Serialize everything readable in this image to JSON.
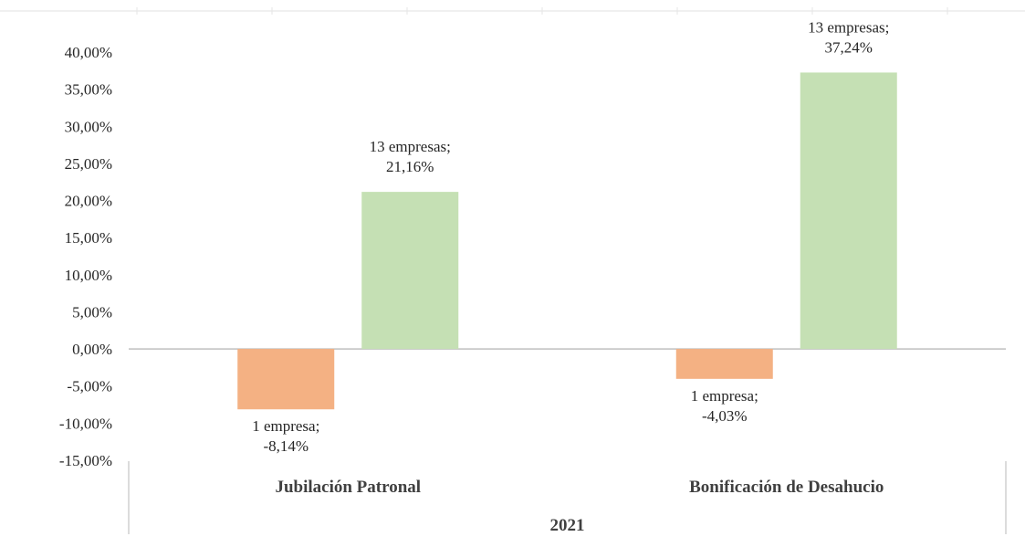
{
  "chart_data": {
    "type": "bar",
    "categories": [
      "Jubilación Patronal",
      "Bonificación de Desahucio"
    ],
    "group_label": "2021",
    "series": [
      {
        "color": "#f4b183",
        "values": [
          -8.14,
          -4.03
        ]
      },
      {
        "color": "#c5e0b4",
        "values": [
          21.16,
          37.24
        ]
      }
    ],
    "data_labels": [
      [
        "1 empresa;",
        "-8,14%"
      ],
      [
        "13 empresas;",
        "21,16%"
      ],
      [
        "1 empresa;",
        "-4,03%"
      ],
      [
        "13 empresas;",
        "37,24%"
      ]
    ],
    "y_ticks": [
      40,
      35,
      30,
      25,
      20,
      15,
      10,
      5,
      0,
      -5,
      -10,
      -15
    ],
    "y_tick_labels": [
      "40,00%",
      "35,00%",
      "30,00%",
      "25,00%",
      "20,00%",
      "15,00%",
      "10,00%",
      "5,00%",
      "0,00%",
      "-5,00%",
      "-10,00%",
      "-15,00%"
    ],
    "ylim": [
      -15,
      40
    ],
    "grid": false,
    "legend": "none"
  }
}
